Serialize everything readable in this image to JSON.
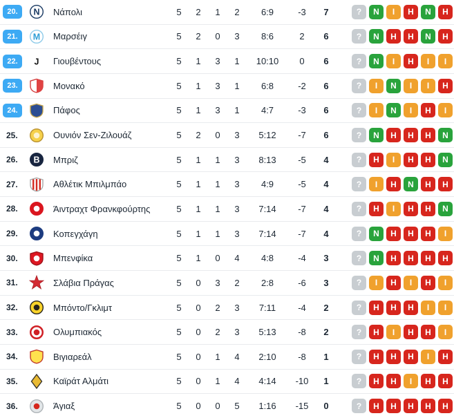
{
  "colors": {
    "rank_badge_bg": "#3daaf4",
    "rank_badge_text": "#ffffff",
    "text_primary": "#1c2733",
    "row_divider": "#e9ebee",
    "form": {
      "W": "#29a33c",
      "D": "#f0a12d",
      "L": "#d7261d",
      "?": "#c8cdd1"
    }
  },
  "form_letters": {
    "W": "Ν",
    "D": "Ι",
    "L": "Η",
    "?": "?"
  },
  "standings": {
    "rows": [
      {
        "rank": "20.",
        "highlighted": true,
        "team": "Νάπολι",
        "played": "5",
        "wins": "2",
        "draws": "1",
        "losses": "2",
        "goals": "6:9",
        "diff": "-3",
        "points": "7",
        "form": [
          "?",
          "W",
          "D",
          "L",
          "W",
          "L"
        ],
        "logo": {
          "shape": "circle",
          "bg": "#ffffff",
          "border": "#1a3a63",
          "letter": "N",
          "letterColor": "#1a3a63"
        }
      },
      {
        "rank": "21.",
        "highlighted": true,
        "team": "Μαρσέιγ",
        "played": "5",
        "wins": "2",
        "draws": "0",
        "losses": "3",
        "goals": "8:6",
        "diff": "2",
        "points": "6",
        "form": [
          "?",
          "W",
          "L",
          "L",
          "W",
          "L"
        ],
        "logo": {
          "shape": "circle",
          "bg": "#ffffff",
          "border": "#8ecbe9",
          "letter": "M",
          "letterColor": "#2f9fd6"
        }
      },
      {
        "rank": "22.",
        "highlighted": true,
        "team": "Γιουβέντους",
        "played": "5",
        "wins": "1",
        "draws": "3",
        "losses": "1",
        "goals": "10:10",
        "diff": "0",
        "points": "6",
        "form": [
          "?",
          "W",
          "D",
          "L",
          "D",
          "D"
        ],
        "logo": {
          "shape": "circle",
          "bg": "#ffffff",
          "border": "#ffffff",
          "letter": "J",
          "letterColor": "#141414"
        }
      },
      {
        "rank": "23.",
        "highlighted": true,
        "team": "Μονακό",
        "played": "5",
        "wins": "1",
        "draws": "3",
        "losses": "1",
        "goals": "6:8",
        "diff": "-2",
        "points": "6",
        "form": [
          "?",
          "D",
          "W",
          "D",
          "D",
          "L"
        ],
        "logo": {
          "shape": "shield",
          "bg": "#ffffff",
          "border": "#d43c3c",
          "overlay": "diag",
          "accent": "#e04343"
        }
      },
      {
        "rank": "24.",
        "highlighted": true,
        "team": "Πάφος",
        "played": "5",
        "wins": "1",
        "draws": "3",
        "losses": "1",
        "goals": "4:7",
        "diff": "-3",
        "points": "6",
        "form": [
          "?",
          "D",
          "W",
          "D",
          "L",
          "D"
        ],
        "logo": {
          "shape": "shield",
          "bg": "#2c4d92",
          "border": "#c7a64e"
        }
      },
      {
        "rank": "25.",
        "highlighted": false,
        "team": "Ουνιόν Σεν-Ζιλουάζ",
        "played": "5",
        "wins": "2",
        "draws": "0",
        "losses": "3",
        "goals": "5:12",
        "diff": "-7",
        "points": "6",
        "form": [
          "?",
          "W",
          "L",
          "L",
          "L",
          "W"
        ],
        "logo": {
          "shape": "circle",
          "bg": "#f6d14b",
          "border": "#b8902f",
          "overlay": "dot",
          "accent": "#fdf3cf"
        }
      },
      {
        "rank": "26.",
        "highlighted": false,
        "team": "Μπριζ",
        "played": "5",
        "wins": "1",
        "draws": "1",
        "losses": "3",
        "goals": "8:13",
        "diff": "-5",
        "points": "4",
        "form": [
          "?",
          "L",
          "D",
          "L",
          "L",
          "W"
        ],
        "logo": {
          "shape": "circle",
          "bg": "#182540",
          "border": "#182540",
          "letter": "B",
          "letterColor": "#ffffff"
        }
      },
      {
        "rank": "27.",
        "highlighted": false,
        "team": "Αθλέτικ Μπιλμπάο",
        "played": "5",
        "wins": "1",
        "draws": "1",
        "losses": "3",
        "goals": "4:9",
        "diff": "-5",
        "points": "4",
        "form": [
          "?",
          "D",
          "L",
          "W",
          "L",
          "L"
        ],
        "logo": {
          "shape": "shield",
          "bg": "#ffffff",
          "border": "#a9a9a9",
          "overlay": "stripes",
          "accent": "#d42b22"
        }
      },
      {
        "rank": "28.",
        "highlighted": false,
        "team": "Άιντραχτ Φρανκφούρτης",
        "played": "5",
        "wins": "1",
        "draws": "1",
        "losses": "3",
        "goals": "7:14",
        "diff": "-7",
        "points": "4",
        "form": [
          "?",
          "L",
          "D",
          "L",
          "L",
          "W"
        ],
        "logo": {
          "shape": "circle",
          "bg": "#da161f",
          "border": "#da161f",
          "overlay": "dot",
          "accent": "#ffffff"
        }
      },
      {
        "rank": "29.",
        "highlighted": false,
        "team": "Κοπεγχάγη",
        "played": "5",
        "wins": "1",
        "draws": "1",
        "losses": "3",
        "goals": "7:14",
        "diff": "-7",
        "points": "4",
        "form": [
          "?",
          "W",
          "L",
          "L",
          "L",
          "D"
        ],
        "logo": {
          "shape": "circle",
          "bg": "#1d3c80",
          "border": "#1d3c80",
          "overlay": "dot",
          "accent": "#ffffff"
        }
      },
      {
        "rank": "30.",
        "highlighted": false,
        "team": "Μπενφίκα",
        "played": "5",
        "wins": "1",
        "draws": "0",
        "losses": "4",
        "goals": "4:8",
        "diff": "-4",
        "points": "3",
        "form": [
          "?",
          "W",
          "L",
          "L",
          "L",
          "L"
        ],
        "logo": {
          "shape": "shield",
          "bg": "#dd1823",
          "border": "#9d1018",
          "overlay": "dot",
          "accent": "#ffffff"
        }
      },
      {
        "rank": "31.",
        "highlighted": false,
        "team": "Σλάβια Πράγας",
        "played": "5",
        "wins": "0",
        "draws": "3",
        "losses": "2",
        "goals": "2:8",
        "diff": "-6",
        "points": "3",
        "form": [
          "?",
          "D",
          "L",
          "D",
          "L",
          "D"
        ],
        "logo": {
          "shape": "star",
          "bg": "#d32b33",
          "border": "#a81f26"
        }
      },
      {
        "rank": "32.",
        "highlighted": false,
        "team": "Μπόντο/Γκλιμτ",
        "played": "5",
        "wins": "0",
        "draws": "2",
        "losses": "3",
        "goals": "7:11",
        "diff": "-4",
        "points": "2",
        "form": [
          "?",
          "L",
          "L",
          "L",
          "D",
          "D"
        ],
        "logo": {
          "shape": "circle",
          "bg": "#f9d32a",
          "border": "#26221c",
          "overlay": "dot",
          "accent": "#26221c"
        }
      },
      {
        "rank": "33.",
        "highlighted": false,
        "team": "Ολυμπιακός",
        "played": "5",
        "wins": "0",
        "draws": "2",
        "losses": "3",
        "goals": "5:13",
        "diff": "-8",
        "points": "2",
        "form": [
          "?",
          "L",
          "D",
          "L",
          "L",
          "D"
        ],
        "logo": {
          "shape": "circle",
          "bg": "#ffffff",
          "border": "#d02025",
          "bw": 2.5,
          "overlay": "dot",
          "accent": "#d02025"
        }
      },
      {
        "rank": "34.",
        "highlighted": false,
        "team": "Βιγιαρεάλ",
        "played": "5",
        "wins": "0",
        "draws": "1",
        "losses": "4",
        "goals": "2:10",
        "diff": "-8",
        "points": "1",
        "form": [
          "?",
          "L",
          "L",
          "L",
          "D",
          "L"
        ],
        "logo": {
          "shape": "shield",
          "bg": "#ffe14e",
          "border": "#c0392b"
        }
      },
      {
        "rank": "35.",
        "highlighted": false,
        "team": "Καϊράτ Αλμάτι",
        "played": "5",
        "wins": "0",
        "draws": "1",
        "losses": "4",
        "goals": "4:14",
        "diff": "-10",
        "points": "1",
        "form": [
          "?",
          "L",
          "L",
          "D",
          "L",
          "L"
        ],
        "logo": {
          "shape": "diamond",
          "bg": "#e9ba33",
          "border": "#37332b"
        }
      },
      {
        "rank": "36.",
        "highlighted": false,
        "team": "Άγιαξ",
        "played": "5",
        "wins": "0",
        "draws": "0",
        "losses": "5",
        "goals": "1:16",
        "diff": "-15",
        "points": "0",
        "form": [
          "?",
          "L",
          "L",
          "L",
          "L",
          "L"
        ],
        "logo": {
          "shape": "circle",
          "bg": "#e3e6e8",
          "border": "#aeb4b8",
          "overlay": "dot",
          "accent": "#d5271d"
        }
      }
    ]
  }
}
